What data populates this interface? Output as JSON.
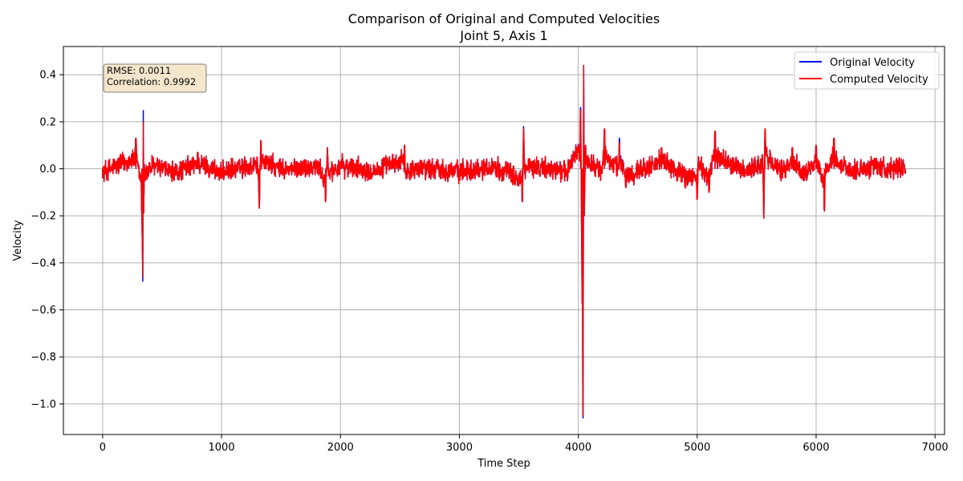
{
  "chart_data": {
    "type": "line",
    "title": "Comparison of Original and Computed Velocities",
    "subtitle": "Joint 5, Axis 1",
    "xlabel": "Time Step",
    "ylabel": "Velocity",
    "xlim": [
      -330,
      7080
    ],
    "ylim": [
      -1.13,
      0.52
    ],
    "x_ticks": [
      0,
      1000,
      2000,
      3000,
      4000,
      5000,
      6000,
      7000
    ],
    "x_tick_labels": [
      "0",
      "1000",
      "2000",
      "3000",
      "4000",
      "5000",
      "6000",
      "7000"
    ],
    "y_ticks": [
      0.4,
      0.2,
      0.0,
      -0.2,
      -0.4,
      -0.6,
      -0.8,
      -1.0
    ],
    "y_tick_labels": [
      "0.4",
      "0.2",
      "0.0",
      "−0.2",
      "−0.4",
      "−0.6",
      "−0.8",
      "−1.0"
    ],
    "grid": true,
    "legend_position": "top-right",
    "x_range": [
      0,
      6750
    ],
    "series": [
      {
        "name": "Original Velocity",
        "color": "#0000ff",
        "x": [
          0,
          150,
          280,
          330,
          338,
          342,
          346,
          350,
          360,
          420,
          600,
          800,
          1000,
          1300,
          1318,
          1330,
          1500,
          1800,
          1875,
          1890,
          1900,
          2000,
          2300,
          2540,
          2545,
          2700,
          3000,
          3300,
          3530,
          3540,
          3550,
          3600,
          3900,
          4020,
          4030,
          4040,
          4045,
          4050,
          4060,
          4200,
          4220,
          4340,
          4345,
          4400,
          4700,
          4900,
          5000,
          5010,
          5100,
          5150,
          5400,
          5550,
          5560,
          5570,
          5700,
          5800,
          5900,
          6000,
          6070,
          6080,
          6150,
          6300,
          6500,
          6750
        ],
        "values": [
          -0.04,
          0.06,
          0.13,
          -0.19,
          -0.48,
          0.25,
          -0.19,
          0.02,
          -0.05,
          0.04,
          -0.05,
          0.07,
          -0.04,
          0.05,
          -0.17,
          0.12,
          -0.02,
          0.03,
          -0.14,
          0.09,
          -0.03,
          0.03,
          -0.02,
          0.1,
          -0.02,
          0.02,
          -0.03,
          0.03,
          -0.14,
          0.18,
          -0.02,
          0.03,
          -0.03,
          0.26,
          -0.41,
          -1.06,
          0.44,
          -0.2,
          0.1,
          -0.02,
          0.17,
          0.0,
          0.13,
          -0.08,
          0.09,
          -0.08,
          -0.13,
          0.05,
          -0.1,
          0.16,
          -0.03,
          0.06,
          -0.21,
          0.17,
          -0.04,
          0.09,
          -0.05,
          0.1,
          -0.18,
          0.02,
          0.13,
          -0.03,
          0.04,
          -0.02
        ]
      },
      {
        "name": "Computed Velocity",
        "color": "#ff0000",
        "x": [
          0,
          150,
          280,
          330,
          338,
          342,
          346,
          350,
          360,
          420,
          600,
          800,
          1000,
          1300,
          1318,
          1330,
          1500,
          1800,
          1875,
          1890,
          1900,
          2000,
          2300,
          2540,
          2545,
          2700,
          3000,
          3300,
          3530,
          3540,
          3550,
          3600,
          3900,
          4020,
          4030,
          4040,
          4045,
          4050,
          4060,
          4200,
          4220,
          4340,
          4345,
          4400,
          4700,
          4900,
          5000,
          5010,
          5100,
          5150,
          5400,
          5550,
          5560,
          5570,
          5700,
          5800,
          5900,
          6000,
          6070,
          6080,
          6150,
          6300,
          6500,
          6750
        ],
        "values": [
          -0.04,
          0.06,
          0.13,
          -0.19,
          -0.46,
          0.2,
          -0.19,
          0.02,
          -0.05,
          0.04,
          -0.05,
          0.07,
          -0.04,
          0.05,
          -0.17,
          0.12,
          -0.02,
          0.03,
          -0.14,
          0.09,
          -0.03,
          0.03,
          -0.02,
          0.1,
          -0.02,
          0.02,
          -0.03,
          0.03,
          -0.14,
          0.17,
          -0.02,
          0.03,
          -0.03,
          0.25,
          -0.41,
          -1.05,
          0.44,
          -0.2,
          0.1,
          -0.02,
          0.17,
          0.0,
          0.11,
          -0.08,
          0.09,
          -0.08,
          -0.13,
          0.05,
          -0.1,
          0.16,
          -0.03,
          0.06,
          -0.21,
          0.17,
          -0.04,
          0.09,
          -0.05,
          0.1,
          -0.18,
          0.02,
          0.13,
          -0.03,
          0.04,
          -0.02
        ]
      }
    ],
    "noise_amplitude": 0.035,
    "annotation": {
      "lines": [
        "RMSE: 0.0011",
        "Correlation: 0.9992"
      ],
      "background": "#f5e6cc",
      "border": "#808080"
    },
    "frame_color": "#000000",
    "grid_color": "#b0b0b0"
  }
}
